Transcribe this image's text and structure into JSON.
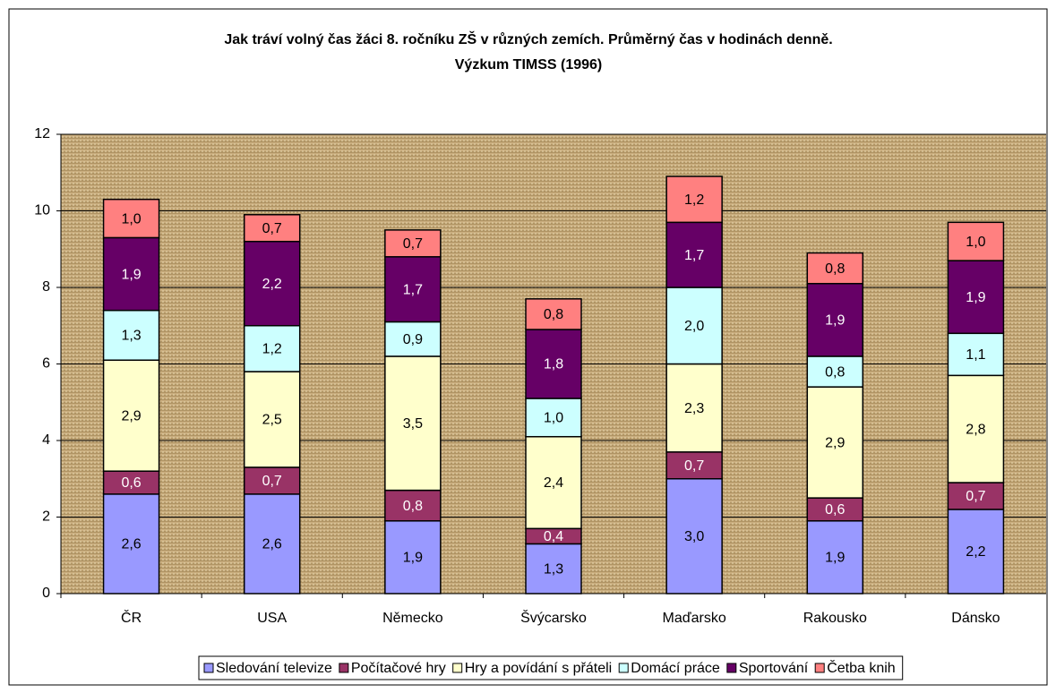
{
  "chart_data": {
    "type": "stacked_bar",
    "title": "Jak tráví volný čas žáci 8. ročníku ZŠ v různých zemích. Průměrný čas v hodinách denně.",
    "subtitle": "Výzkum TIMSS (1996)",
    "categories": [
      "ČR",
      "USA",
      "Německo",
      "Švýcarsko",
      "Maďarsko",
      "Rakousko",
      "Dánsko"
    ],
    "series": [
      {
        "name": "Sledování televize",
        "color": "#9999ff",
        "values": [
          2.6,
          2.6,
          1.9,
          1.3,
          3.0,
          1.9,
          2.2
        ],
        "value_labels": [
          "2,6",
          "2,6",
          "1,9",
          "1,3",
          "3,0",
          "1,9",
          "2,2"
        ]
      },
      {
        "name": "Počítačové hry",
        "color": "#993366",
        "values": [
          0.6,
          0.7,
          0.8,
          0.4,
          0.7,
          0.6,
          0.7
        ],
        "value_labels": [
          "0,6",
          "0,7",
          "0,8",
          "0,4",
          "0,7",
          "0,6",
          "0,7"
        ]
      },
      {
        "name": "Hry a povídání s přáteli",
        "color": "#ffffcc",
        "values": [
          2.9,
          2.5,
          3.5,
          2.4,
          2.3,
          2.9,
          2.8
        ],
        "value_labels": [
          "2,9",
          "2,5",
          "3,5",
          "2,4",
          "2,3",
          "2,9",
          "2,8"
        ]
      },
      {
        "name": "Domácí práce",
        "color": "#ccffff",
        "values": [
          1.3,
          1.2,
          0.9,
          1.0,
          2.0,
          0.8,
          1.1
        ],
        "value_labels": [
          "1,3",
          "1,2",
          "0,9",
          "1,0",
          "2,0",
          "0,8",
          "1,1"
        ]
      },
      {
        "name": "Sportování",
        "color": "#660066",
        "values": [
          1.9,
          2.2,
          1.7,
          1.8,
          1.7,
          1.9,
          1.9
        ],
        "value_labels": [
          "1,9",
          "2,2",
          "1,7",
          "1,8",
          "1,7",
          "1,9",
          "1,9"
        ]
      },
      {
        "name": "Četba knih",
        "color": "#ff8080",
        "values": [
          1.0,
          0.7,
          0.7,
          0.8,
          1.2,
          0.8,
          1.0
        ],
        "value_labels": [
          "1,0",
          "0,7",
          "0,7",
          "0,8",
          "1,2",
          "0,8",
          "1,0"
        ]
      }
    ],
    "ylim": [
      0,
      12
    ],
    "yticks": [
      0,
      2,
      4,
      6,
      8,
      10,
      12
    ],
    "grid": true,
    "legend": "bottom"
  }
}
